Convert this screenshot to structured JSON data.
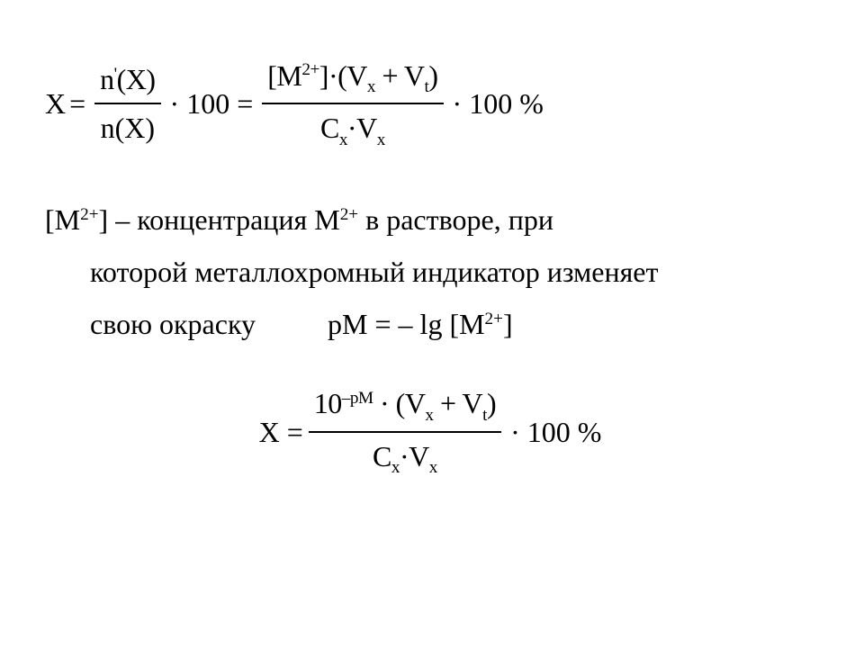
{
  "colors": {
    "text": "#000000",
    "background": "#ffffff",
    "fraction_bar": "#000000"
  },
  "typography": {
    "font_family": "Times New Roman",
    "base_size_pt": 24,
    "subsup_scale": 0.6
  },
  "formula1": {
    "lhs": "X",
    "eq": "=",
    "frac1_num_before": "n",
    "frac1_num_prime": "'",
    "frac1_num_after": "(X)",
    "frac1_den": "n(X)",
    "mid1": "· 100 =",
    "frac2_num_p1": "[M",
    "frac2_num_sup1": "2+",
    "frac2_num_p2": "]·(V",
    "frac2_num_sub1": "x",
    "frac2_num_p3": " + V",
    "frac2_num_sub2": "t",
    "frac2_num_p4": ")",
    "frac2_den_p1": "C",
    "frac2_den_sub1": "x",
    "frac2_den_p2": "·V",
    "frac2_den_sub2": "x",
    "tail": "· 100 %"
  },
  "explanation": {
    "line1_p1": "[M",
    "line1_sup1": "2+",
    "line1_p2": "] – концентрация M",
    "line1_sup2": "2+",
    "line1_p3": " в растворе, при",
    "line2": "которой металлохромный индикатор изменяет",
    "line3_a": "свою окраску",
    "line3_b_p1": "pM = – lg [M",
    "line3_b_sup": "2+",
    "line3_b_p2": "]"
  },
  "formula2": {
    "lhs": "X =",
    "num_p1": "10",
    "num_sup": "–pM",
    "num_p2": " · (V",
    "num_sub1": "x",
    "num_p3": " + V",
    "num_sub2": "t",
    "num_p4": ")",
    "den_p1": "C",
    "den_sub1": "x",
    "den_p2": "·V",
    "den_sub2": "x",
    "tail": "· 100 %"
  }
}
